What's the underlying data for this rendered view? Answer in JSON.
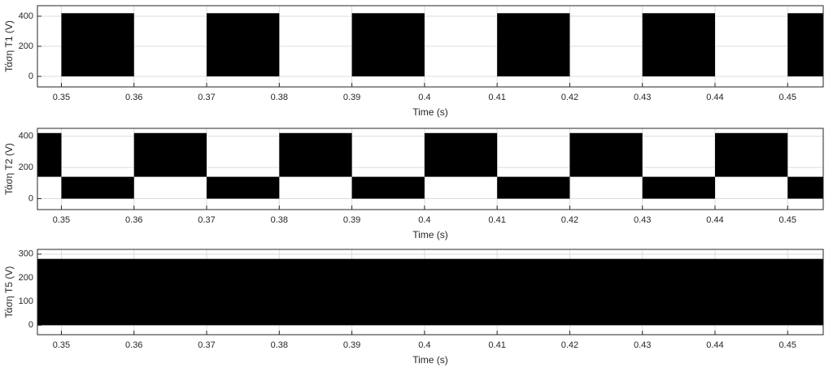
{
  "chart_data": [
    {
      "type": "band",
      "xlabel": "Time (s)",
      "ylabel": "Τάση T1 (V)",
      "color": "#000000",
      "grid": true,
      "xlim": [
        0.3467,
        0.4549
      ],
      "ylim": [
        -70,
        470
      ],
      "xticks": [
        0.35,
        0.36,
        0.37,
        0.38,
        0.39,
        0.4,
        0.41,
        0.42,
        0.43,
        0.44,
        0.45
      ],
      "yticks": [
        0,
        200,
        400
      ],
      "segments": [
        {
          "x": [
            0.35,
            0.36
          ],
          "y": [
            0,
            420
          ]
        },
        {
          "x": [
            0.37,
            0.38
          ],
          "y": [
            0,
            420
          ]
        },
        {
          "x": [
            0.39,
            0.4
          ],
          "y": [
            0,
            420
          ]
        },
        {
          "x": [
            0.41,
            0.42
          ],
          "y": [
            0,
            420
          ]
        },
        {
          "x": [
            0.43,
            0.44
          ],
          "y": [
            0,
            420
          ]
        },
        {
          "x": [
            0.45,
            0.4549
          ],
          "y": [
            0,
            420
          ]
        }
      ]
    },
    {
      "type": "band",
      "xlabel": "Time (s)",
      "ylabel": "Τάση T2 (V)",
      "color": "#000000",
      "grid": true,
      "xlim": [
        0.3467,
        0.4549
      ],
      "ylim": [
        -70,
        450
      ],
      "xticks": [
        0.35,
        0.36,
        0.37,
        0.38,
        0.39,
        0.4,
        0.41,
        0.42,
        0.43,
        0.44,
        0.45
      ],
      "yticks": [
        0,
        200,
        400
      ],
      "segments": [
        {
          "x": [
            0.3467,
            0.35
          ],
          "y": [
            140,
            420
          ]
        },
        {
          "x": [
            0.35,
            0.36
          ],
          "y": [
            0,
            140
          ]
        },
        {
          "x": [
            0.36,
            0.37
          ],
          "y": [
            140,
            420
          ]
        },
        {
          "x": [
            0.37,
            0.38
          ],
          "y": [
            0,
            140
          ]
        },
        {
          "x": [
            0.38,
            0.39
          ],
          "y": [
            140,
            420
          ]
        },
        {
          "x": [
            0.39,
            0.4
          ],
          "y": [
            0,
            140
          ]
        },
        {
          "x": [
            0.4,
            0.41
          ],
          "y": [
            140,
            420
          ]
        },
        {
          "x": [
            0.41,
            0.42
          ],
          "y": [
            0,
            140
          ]
        },
        {
          "x": [
            0.42,
            0.43
          ],
          "y": [
            140,
            420
          ]
        },
        {
          "x": [
            0.43,
            0.44
          ],
          "y": [
            0,
            140
          ]
        },
        {
          "x": [
            0.44,
            0.45
          ],
          "y": [
            140,
            420
          ]
        },
        {
          "x": [
            0.45,
            0.4549
          ],
          "y": [
            0,
            140
          ]
        }
      ]
    },
    {
      "type": "band",
      "xlabel": "Time (s)",
      "ylabel": "Τάση T5 (V)",
      "color": "#000000",
      "grid": true,
      "xlim": [
        0.3467,
        0.4549
      ],
      "ylim": [
        -40,
        320
      ],
      "xticks": [
        0.35,
        0.36,
        0.37,
        0.38,
        0.39,
        0.4,
        0.41,
        0.42,
        0.43,
        0.44,
        0.45
      ],
      "yticks": [
        0,
        100,
        200,
        300
      ],
      "segments": [
        {
          "x": [
            0.3467,
            0.4549
          ],
          "y": [
            0,
            280
          ]
        }
      ]
    }
  ]
}
